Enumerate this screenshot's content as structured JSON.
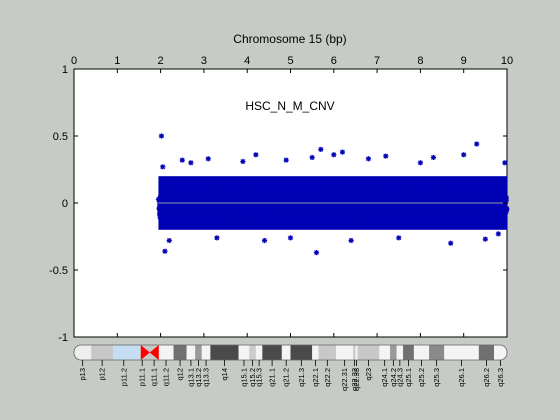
{
  "figure": {
    "background": "#c7cbc5"
  },
  "chart_data": {
    "type": "scatter",
    "title": "HSC_N_M_CNV",
    "xlabel": "Chromosome 15 (bp)",
    "ylabel": "",
    "x_axis_position": "top",
    "xlim": [
      0,
      10
    ],
    "ylim": [
      -1,
      1
    ],
    "xticks": [
      0,
      1,
      2,
      3,
      4,
      5,
      6,
      7,
      8,
      9,
      10
    ],
    "xtick_labels": [
      "0",
      "1",
      "2",
      "3",
      "4",
      "5",
      "6",
      "7",
      "8",
      "9",
      "10"
    ],
    "yticks": [
      1,
      0.5,
      0,
      -0.5,
      -1
    ],
    "ytick_labels": [
      "1",
      "0.5",
      "0",
      "-0.5",
      "-1"
    ],
    "grid": false,
    "baseline": {
      "y": 0,
      "color": "#8a9aae"
    },
    "series": [
      {
        "marker": "asterisk",
        "color": "#0000b4",
        "band": {
          "x_start": 1.95,
          "x_end": 10,
          "core_min": -0.2,
          "core_max": 0.2
        },
        "outliers": [
          [
            2.02,
            0.5
          ],
          [
            2.05,
            0.27
          ],
          [
            2.1,
            -0.36
          ],
          [
            2.2,
            -0.28
          ],
          [
            2.5,
            0.32
          ],
          [
            2.7,
            0.3
          ],
          [
            3.1,
            0.33
          ],
          [
            3.3,
            -0.26
          ],
          [
            3.9,
            0.31
          ],
          [
            4.2,
            0.36
          ],
          [
            4.4,
            -0.28
          ],
          [
            4.9,
            0.32
          ],
          [
            5.0,
            -0.26
          ],
          [
            5.5,
            0.34
          ],
          [
            5.7,
            0.4
          ],
          [
            5.6,
            -0.37
          ],
          [
            6.0,
            0.36
          ],
          [
            6.2,
            0.38
          ],
          [
            6.4,
            -0.28
          ],
          [
            6.8,
            0.33
          ],
          [
            7.2,
            0.35
          ],
          [
            7.5,
            -0.26
          ],
          [
            8.0,
            0.3
          ],
          [
            8.3,
            0.34
          ],
          [
            8.7,
            -0.3
          ],
          [
            9.0,
            0.36
          ],
          [
            9.3,
            0.44
          ],
          [
            9.5,
            -0.27
          ],
          [
            9.95,
            0.3
          ],
          [
            9.8,
            -0.23
          ]
        ]
      }
    ]
  },
  "ideogram": {
    "centromere_color": "#ff0000",
    "bands": [
      {
        "label": "p13",
        "start": 0.0,
        "end": 0.4,
        "color": "#eeeeee"
      },
      {
        "label": "p12",
        "start": 0.4,
        "end": 0.9,
        "color": "#c8c8c8"
      },
      {
        "label": "p11.2",
        "start": 0.9,
        "end": 1.4,
        "color": "#c6def3"
      },
      {
        "label": "p11.1",
        "start": 1.4,
        "end": 1.75,
        "color": "#c6def3"
      },
      {
        "label": "q11.1",
        "start": 1.75,
        "end": 1.95,
        "color": "#ffffff"
      },
      {
        "label": "q11.2",
        "start": 1.95,
        "end": 2.3,
        "color": "#f4f4f4"
      },
      {
        "label": "q12",
        "start": 2.3,
        "end": 2.6,
        "color": "#707070"
      },
      {
        "label": "q13.1",
        "start": 2.6,
        "end": 2.8,
        "color": "#f4f4f4"
      },
      {
        "label": "q13.2",
        "start": 2.8,
        "end": 2.95,
        "color": "#9a9a9a"
      },
      {
        "label": "q13.3",
        "start": 2.95,
        "end": 3.15,
        "color": "#f4f4f4"
      },
      {
        "label": "q14",
        "start": 3.15,
        "end": 3.8,
        "color": "#4a4a4a"
      },
      {
        "label": "q15.1",
        "start": 3.8,
        "end": 4.05,
        "color": "#f4f4f4"
      },
      {
        "label": "q15.2",
        "start": 4.05,
        "end": 4.2,
        "color": "#cccccc"
      },
      {
        "label": "q15.3",
        "start": 4.2,
        "end": 4.35,
        "color": "#f4f4f4"
      },
      {
        "label": "q21.1",
        "start": 4.35,
        "end": 4.8,
        "color": "#4a4a4a"
      },
      {
        "label": "q21.2",
        "start": 4.8,
        "end": 5.0,
        "color": "#f4f4f4"
      },
      {
        "label": "q21.3",
        "start": 5.0,
        "end": 5.5,
        "color": "#4a4a4a"
      },
      {
        "label": "q22.1",
        "start": 5.5,
        "end": 5.65,
        "color": "#f4f4f4"
      },
      {
        "label": "q22.2",
        "start": 5.65,
        "end": 6.05,
        "color": "#c8c8c8"
      },
      {
        "label": "q22.31",
        "start": 6.05,
        "end": 6.45,
        "color": "#f4f4f4"
      },
      {
        "label": "q22.32",
        "start": 6.45,
        "end": 6.5,
        "color": "#c8c8c8"
      },
      {
        "label": "q22.33",
        "start": 6.5,
        "end": 6.55,
        "color": "#f4f4f4"
      },
      {
        "label": "q23",
        "start": 6.55,
        "end": 7.05,
        "color": "#c8c8c8"
      },
      {
        "label": "q24.1",
        "start": 7.05,
        "end": 7.3,
        "color": "#f4f4f4"
      },
      {
        "label": "q24.2",
        "start": 7.3,
        "end": 7.45,
        "color": "#9a9a9a"
      },
      {
        "label": "q24.3",
        "start": 7.45,
        "end": 7.6,
        "color": "#f4f4f4"
      },
      {
        "label": "q25.1",
        "start": 7.6,
        "end": 7.85,
        "color": "#707070"
      },
      {
        "label": "q25.2",
        "start": 7.85,
        "end": 8.2,
        "color": "#f4f4f4"
      },
      {
        "label": "q25.3",
        "start": 8.2,
        "end": 8.55,
        "color": "#8a8a8a"
      },
      {
        "label": "q26.1",
        "start": 8.55,
        "end": 9.35,
        "color": "#f4f4f4"
      },
      {
        "label": "q26.2",
        "start": 9.35,
        "end": 9.7,
        "color": "#707070"
      },
      {
        "label": "q26.3",
        "start": 9.7,
        "end": 10.0,
        "color": "#f4f4f4"
      }
    ]
  }
}
